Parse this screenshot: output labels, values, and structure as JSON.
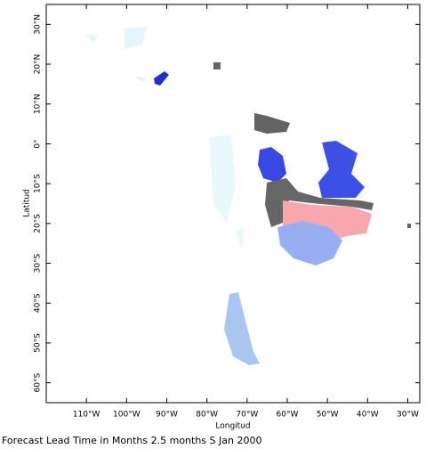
{
  "chart_data": {
    "type": "map",
    "caption": "Forecast Lead Time in Months 2.5 months S Jan 2000",
    "xlabel": "Longitud",
    "ylabel": "Latitud",
    "xlim": [
      -120,
      -27
    ],
    "ylim": [
      -65,
      35
    ],
    "xticks": [
      {
        "value": -110,
        "label": "110°W"
      },
      {
        "value": -100,
        "label": "100°W"
      },
      {
        "value": -90,
        "label": "90°W"
      },
      {
        "value": -80,
        "label": "80°W"
      },
      {
        "value": -70,
        "label": "70°W"
      },
      {
        "value": -60,
        "label": "60°W"
      },
      {
        "value": -50,
        "label": "50°W"
      },
      {
        "value": -40,
        "label": "40°W"
      },
      {
        "value": -30,
        "label": "30°W"
      }
    ],
    "yticks": [
      {
        "value": 30,
        "label": "30°N"
      },
      {
        "value": 20,
        "label": "20°N"
      },
      {
        "value": 10,
        "label": "10°N"
      },
      {
        "value": 0,
        "label": "0°"
      },
      {
        "value": -10,
        "label": "10°S"
      },
      {
        "value": -20,
        "label": "20°S"
      },
      {
        "value": -30,
        "label": "30°S"
      },
      {
        "value": -40,
        "label": "40°S"
      },
      {
        "value": -50,
        "label": "50°S"
      },
      {
        "value": -60,
        "label": "60°S"
      }
    ]
  }
}
